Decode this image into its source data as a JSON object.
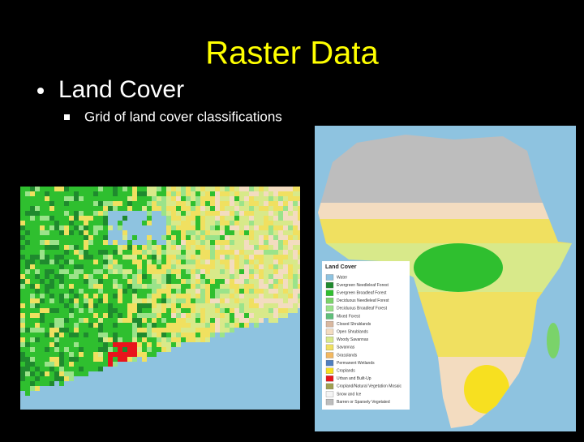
{
  "slide": {
    "title": "Raster Data",
    "bullets": [
      {
        "text": "Land Cover",
        "subbullets": [
          "Grid of land cover classifications"
        ]
      }
    ],
    "legend": {
      "title": "Land Cover",
      "items": [
        {
          "label": "Water",
          "color": "#8ec3e0"
        },
        {
          "label": "Evergreen Needleleaf Forest",
          "color": "#1f8a2e"
        },
        {
          "label": "Evergreen Broadleaf Forest",
          "color": "#2fbf2f"
        },
        {
          "label": "Deciduous Needleleaf Forest",
          "color": "#7ad36a"
        },
        {
          "label": "Deciduous Broadleaf Forest",
          "color": "#9be38a"
        },
        {
          "label": "Mixed Forest",
          "color": "#5fbf7a"
        },
        {
          "label": "Closed Shrublands",
          "color": "#d9b8a0"
        },
        {
          "label": "Open Shrublands",
          "color": "#f3dcc0"
        },
        {
          "label": "Woody Savannas",
          "color": "#d8e98a"
        },
        {
          "label": "Savannas",
          "color": "#f0e060"
        },
        {
          "label": "Grasslands",
          "color": "#f3b860"
        },
        {
          "label": "Permanent Wetlands",
          "color": "#4f7fbf"
        },
        {
          "label": "Croplands",
          "color": "#f7e020"
        },
        {
          "label": "Urban and Built-Up",
          "color": "#e8141c"
        },
        {
          "label": "Cropland/Natural Vegetation Mosaic",
          "color": "#a0a050"
        },
        {
          "label": "Snow and Ice",
          "color": "#f4f4f4"
        },
        {
          "label": "Barren or Sparsely Vegetated",
          "color": "#bdbdbd"
        }
      ]
    }
  }
}
